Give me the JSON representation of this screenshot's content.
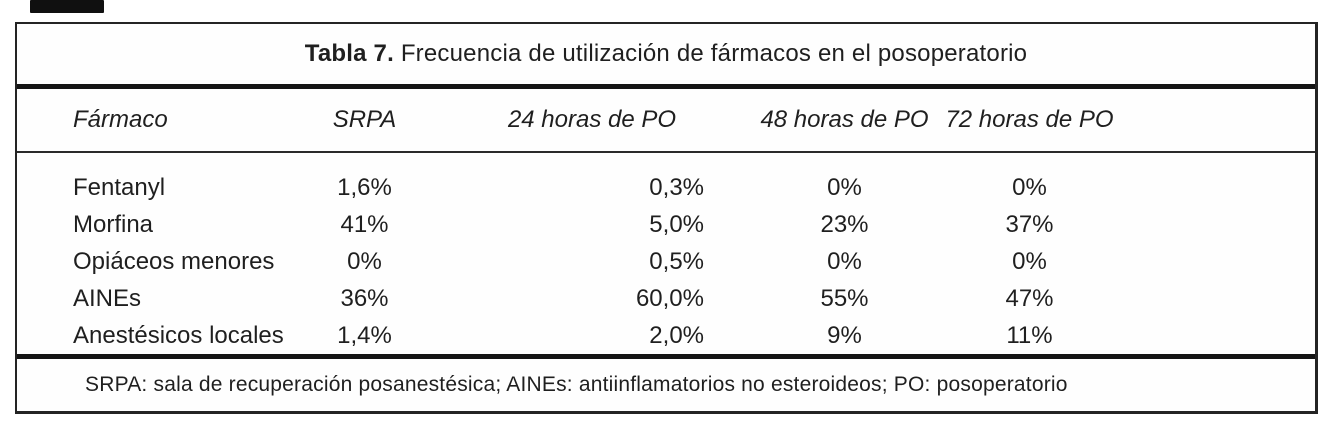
{
  "title": {
    "label": "Tabla 7.",
    "text": "Frecuencia de utilización de fármacos en el posoperatorio"
  },
  "table": {
    "columns": [
      "Fármaco",
      "SRPA",
      "24 horas de PO",
      "48 horas de PO",
      "72 horas de PO"
    ],
    "rows": [
      {
        "drug": "Fentanyl",
        "srpa": "1,6%",
        "po24": "0,3%",
        "po48": "0%",
        "po72": "0%"
      },
      {
        "drug": "Morfina",
        "srpa": "41%",
        "po24": "5,0%",
        "po48": "23%",
        "po72": "37%"
      },
      {
        "drug": "Opiáceos menores",
        "srpa": "0%",
        "po24": "0,5%",
        "po48": "0%",
        "po72": "0%"
      },
      {
        "drug": "AINEs",
        "srpa": "36%",
        "po24": "60,0%",
        "po48": "55%",
        "po72": "47%"
      },
      {
        "drug": "Anestésicos locales",
        "srpa": "1,4%",
        "po24": "2,0%",
        "po48": "9%",
        "po72": "11%"
      }
    ]
  },
  "footnote": "SRPA: sala de recuperación posanestésica; AINEs: antiinflamatorios no esteroideos; PO: posoperatorio",
  "colors": {
    "text": "#1f1f1f",
    "border": "#242424",
    "background": "#ffffff"
  }
}
